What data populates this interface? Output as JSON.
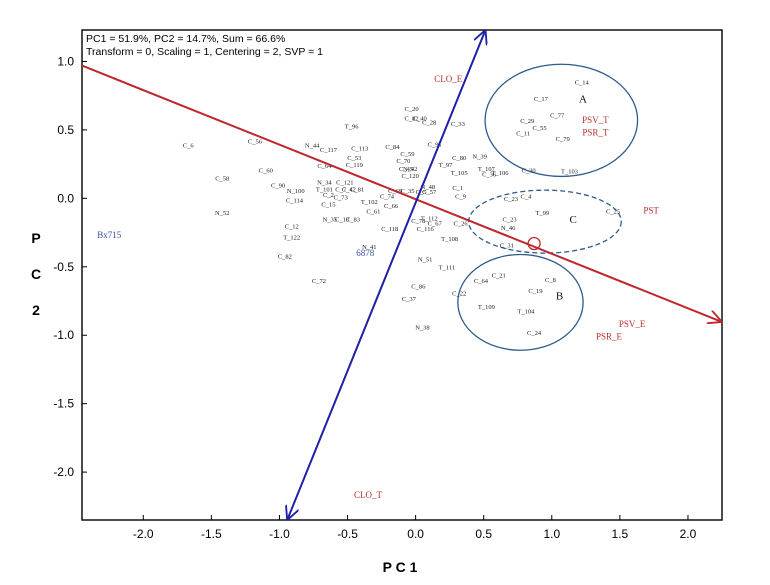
{
  "chart_data": {
    "type": "scatter",
    "title_lines": [
      "PC1 = 51.9%, PC2 = 14.7%, Sum = 66.6%",
      "Transform = 0, Scaling = 1, Centering = 2, SVP = 1"
    ],
    "xlabel": "P C 1",
    "ylabel": "P C 2",
    "xlim": [
      -2.45,
      2.25
    ],
    "ylim": [
      -2.35,
      1.23
    ],
    "x_ticks": [
      -2.0,
      -1.5,
      -1.0,
      -0.5,
      0.0,
      0.5,
      1.0,
      1.5,
      2.0
    ],
    "y_ticks": [
      1.0,
      0.5,
      0.0,
      -0.5,
      -1.0,
      -1.5,
      -2.0
    ],
    "x_tick_labels": [
      "-2.0",
      "-1.5",
      "-1.0",
      "-0.5",
      "0.0",
      "0.5",
      "1.0",
      "1.5",
      "2.0"
    ],
    "y_tick_labels": [
      "1.0",
      "0.5",
      "0.0",
      "-0.5",
      "-1.0",
      "-1.5",
      "-2.0"
    ],
    "colors": {
      "red_axis": "#c0272d",
      "blue_axis": "#1f1fa8",
      "ellipse": "#2f5a8a",
      "env_label": "#b8312f",
      "blue_label": "#3a4fa0"
    },
    "genotypes": [
      {
        "label": "C_14",
        "x": 1.22,
        "y": 0.83
      },
      {
        "label": "C_17",
        "x": 0.92,
        "y": 0.71
      },
      {
        "label": "C_77",
        "x": 1.04,
        "y": 0.59
      },
      {
        "label": "C_29",
        "x": 0.82,
        "y": 0.55
      },
      {
        "label": "C_55",
        "x": 0.91,
        "y": 0.5
      },
      {
        "label": "C_11",
        "x": 0.79,
        "y": 0.46
      },
      {
        "label": "C_79",
        "x": 1.08,
        "y": 0.42
      },
      {
        "label": "C_20",
        "x": -0.03,
        "y": 0.64
      },
      {
        "label": "C_82",
        "x": -0.03,
        "y": 0.57
      },
      {
        "label": "C_40",
        "x": 0.03,
        "y": 0.57
      },
      {
        "label": "C_28",
        "x": 0.1,
        "y": 0.54
      },
      {
        "label": "C_33",
        "x": 0.31,
        "y": 0.53
      },
      {
        "label": "T_96",
        "x": -0.47,
        "y": 0.51
      },
      {
        "label": "C_6",
        "x": -1.67,
        "y": 0.37
      },
      {
        "label": "C_56",
        "x": -1.18,
        "y": 0.4
      },
      {
        "label": "N_44",
        "x": -0.76,
        "y": 0.37
      },
      {
        "label": "C_117",
        "x": -0.64,
        "y": 0.34
      },
      {
        "label": "C_113",
        "x": -0.41,
        "y": 0.35
      },
      {
        "label": "C_84",
        "x": -0.17,
        "y": 0.36
      },
      {
        "label": "C_91",
        "x": 0.14,
        "y": 0.38
      },
      {
        "label": "C_59",
        "x": -0.06,
        "y": 0.31
      },
      {
        "label": "C_53",
        "x": -0.45,
        "y": 0.28
      },
      {
        "label": "C_70",
        "x": -0.09,
        "y": 0.26
      },
      {
        "label": "C_119",
        "x": -0.45,
        "y": 0.23
      },
      {
        "label": "C_80",
        "x": 0.32,
        "y": 0.28
      },
      {
        "label": "N_39",
        "x": 0.47,
        "y": 0.29
      },
      {
        "label": "T_97",
        "x": 0.22,
        "y": 0.23
      },
      {
        "label": "C_45",
        "x": -0.07,
        "y": 0.2
      },
      {
        "label": "N_42",
        "x": -0.04,
        "y": 0.2
      },
      {
        "label": "C_120",
        "x": -0.04,
        "y": 0.15
      },
      {
        "label": "C_60",
        "x": -1.1,
        "y": 0.19
      },
      {
        "label": "C_58",
        "x": -1.42,
        "y": 0.13
      },
      {
        "label": "C_64",
        "x": -0.67,
        "y": 0.22
      },
      {
        "label": "T_105",
        "x": 0.32,
        "y": 0.17
      },
      {
        "label": "T_107",
        "x": 0.52,
        "y": 0.2
      },
      {
        "label": "C_36",
        "x": 0.54,
        "y": 0.16
      },
      {
        "label": "T_106",
        "x": 0.62,
        "y": 0.17
      },
      {
        "label": "C_30",
        "x": 0.83,
        "y": 0.19
      },
      {
        "label": "T_103",
        "x": 1.13,
        "y": 0.18
      },
      {
        "label": "C_90",
        "x": -1.01,
        "y": 0.08
      },
      {
        "label": "N_34",
        "x": -0.67,
        "y": 0.1
      },
      {
        "label": "C_121",
        "x": -0.52,
        "y": 0.1
      },
      {
        "label": "N_100",
        "x": -0.88,
        "y": 0.04
      },
      {
        "label": "T_101",
        "x": -0.67,
        "y": 0.05
      },
      {
        "label": "C_7",
        "x": -0.55,
        "y": 0.05
      },
      {
        "label": "C_42",
        "x": -0.49,
        "y": 0.05
      },
      {
        "label": "C_81",
        "x": -0.43,
        "y": 0.05
      },
      {
        "label": "C_2",
        "x": -0.64,
        "y": 0.01
      },
      {
        "label": "C_73",
        "x": -0.55,
        "y": -0.01
      },
      {
        "label": "C_69",
        "x": -0.15,
        "y": 0.04
      },
      {
        "label": "C_35",
        "x": -0.06,
        "y": 0.04
      },
      {
        "label": "C_5",
        "x": 0.04,
        "y": 0.03
      },
      {
        "label": "N_48",
        "x": 0.09,
        "y": 0.07
      },
      {
        "label": "C_57",
        "x": 0.1,
        "y": 0.03
      },
      {
        "label": "C_1",
        "x": 0.31,
        "y": 0.06
      },
      {
        "label": "C_9",
        "x": 0.33,
        "y": 0.0
      },
      {
        "label": "C_114",
        "x": -0.89,
        "y": -0.03
      },
      {
        "label": "C_74",
        "x": -0.21,
        "y": 0.0
      },
      {
        "label": "C_15",
        "x": -0.64,
        "y": -0.06
      },
      {
        "label": "T_102",
        "x": -0.34,
        "y": -0.04
      },
      {
        "label": "C_66",
        "x": -0.18,
        "y": -0.07
      },
      {
        "label": "C_23",
        "x": 0.7,
        "y": -0.02
      },
      {
        "label": "C_4",
        "x": 0.81,
        "y": 0.0
      },
      {
        "label": "C_61",
        "x": -0.31,
        "y": -0.11
      },
      {
        "label": "T_112",
        "x": 0.1,
        "y": -0.16
      },
      {
        "label": "T_99",
        "x": 0.93,
        "y": -0.12
      },
      {
        "label": "C_25",
        "x": 1.45,
        "y": -0.11
      },
      {
        "label": "N_52",
        "x": -1.42,
        "y": -0.12
      },
      {
        "label": "N_35",
        "x": -0.63,
        "y": -0.17
      },
      {
        "label": "C_13",
        "x": -0.54,
        "y": -0.17
      },
      {
        "label": "C_83",
        "x": -0.46,
        "y": -0.17
      },
      {
        "label": "C_67",
        "x": 0.14,
        "y": -0.2
      },
      {
        "label": "C_78",
        "x": 0.02,
        "y": -0.18
      },
      {
        "label": "C_118",
        "x": -0.19,
        "y": -0.24
      },
      {
        "label": "C_116",
        "x": 0.07,
        "y": -0.24
      },
      {
        "label": "C_26",
        "x": 0.33,
        "y": -0.2
      },
      {
        "label": "C_23b",
        "x": 0.69,
        "y": -0.17
      },
      {
        "label": "N_46",
        "x": 0.68,
        "y": -0.23
      },
      {
        "label": "C_12",
        "x": -0.91,
        "y": -0.22
      },
      {
        "label": "T_122",
        "x": -0.91,
        "y": -0.3
      },
      {
        "label": "T_108",
        "x": 0.25,
        "y": -0.31
      },
      {
        "label": "C_31",
        "x": 0.67,
        "y": -0.36
      },
      {
        "label": "N_41",
        "x": -0.34,
        "y": -0.37
      },
      {
        "label": "C_82",
        "x": -0.96,
        "y": -0.44
      },
      {
        "label": "N_51",
        "x": 0.07,
        "y": -0.46
      },
      {
        "label": "T_111",
        "x": 0.23,
        "y": -0.52
      },
      {
        "label": "C_21",
        "x": 0.61,
        "y": -0.58
      },
      {
        "label": "C_8",
        "x": 0.99,
        "y": -0.61
      },
      {
        "label": "C_64",
        "x": 0.48,
        "y": -0.62
      },
      {
        "label": "C_72",
        "x": -0.71,
        "y": -0.62
      },
      {
        "label": "C_86",
        "x": 0.02,
        "y": -0.66
      },
      {
        "label": "C_19",
        "x": 0.88,
        "y": -0.69
      },
      {
        "label": "C_22",
        "x": 0.32,
        "y": -0.71
      },
      {
        "label": "C_37",
        "x": -0.05,
        "y": -0.75
      },
      {
        "label": "T_109",
        "x": 0.52,
        "y": -0.81
      },
      {
        "label": "T_104",
        "x": 0.81,
        "y": -0.84
      },
      {
        "label": "C_24",
        "x": 0.87,
        "y": -1.0
      },
      {
        "label": "N_38",
        "x": 0.05,
        "y": -0.96
      }
    ],
    "environment_labels": [
      {
        "label": "CLO_E",
        "x": 0.24,
        "y": 0.85,
        "color": "#b8312f"
      },
      {
        "label": "PSV_T",
        "x": 1.32,
        "y": 0.55,
        "color": "#b8312f"
      },
      {
        "label": "PSR_T",
        "x": 1.32,
        "y": 0.46,
        "color": "#b8312f"
      },
      {
        "label": "PST",
        "x": 1.73,
        "y": -0.11,
        "color": "#b8312f"
      },
      {
        "label": "PSV_E",
        "x": 1.59,
        "y": -0.94,
        "color": "#b8312f"
      },
      {
        "label": "PSR_E",
        "x": 1.42,
        "y": -1.03,
        "color": "#b8312f"
      },
      {
        "label": "CLO_T",
        "x": -0.35,
        "y": -2.19,
        "color": "#b8312f"
      },
      {
        "label": "Bx715",
        "x": -2.25,
        "y": -0.29,
        "color": "#3a4fa0"
      },
      {
        "label": "6878",
        "x": -0.37,
        "y": -0.42,
        "color": "#3a4fa0"
      }
    ],
    "vectors": [
      {
        "name": "red",
        "from": [
          -2.45,
          0.97
        ],
        "to": [
          2.25,
          -0.9
        ],
        "arrow_end": true
      },
      {
        "name": "blue",
        "from": [
          -0.94,
          -2.35
        ],
        "to": [
          0.51,
          1.23
        ],
        "arrow_both": true
      }
    ],
    "ellipses": [
      {
        "label": "A",
        "cx": 1.07,
        "cy": 0.57,
        "rx": 0.56,
        "ry": 0.41,
        "dashed": false,
        "label_x": 1.2,
        "label_y": 0.7
      },
      {
        "label": "C",
        "cx": 0.95,
        "cy": -0.17,
        "rx": 0.56,
        "ry": 0.23,
        "dashed": true,
        "label_x": 1.13,
        "label_y": -0.18
      },
      {
        "label": "B",
        "cx": 0.77,
        "cy": -0.76,
        "rx": 0.46,
        "ry": 0.35,
        "dashed": false,
        "label_x": 1.03,
        "label_y": -0.74
      }
    ],
    "marker_circle": {
      "x": 0.87,
      "y": -0.33
    },
    "grid": false
  }
}
